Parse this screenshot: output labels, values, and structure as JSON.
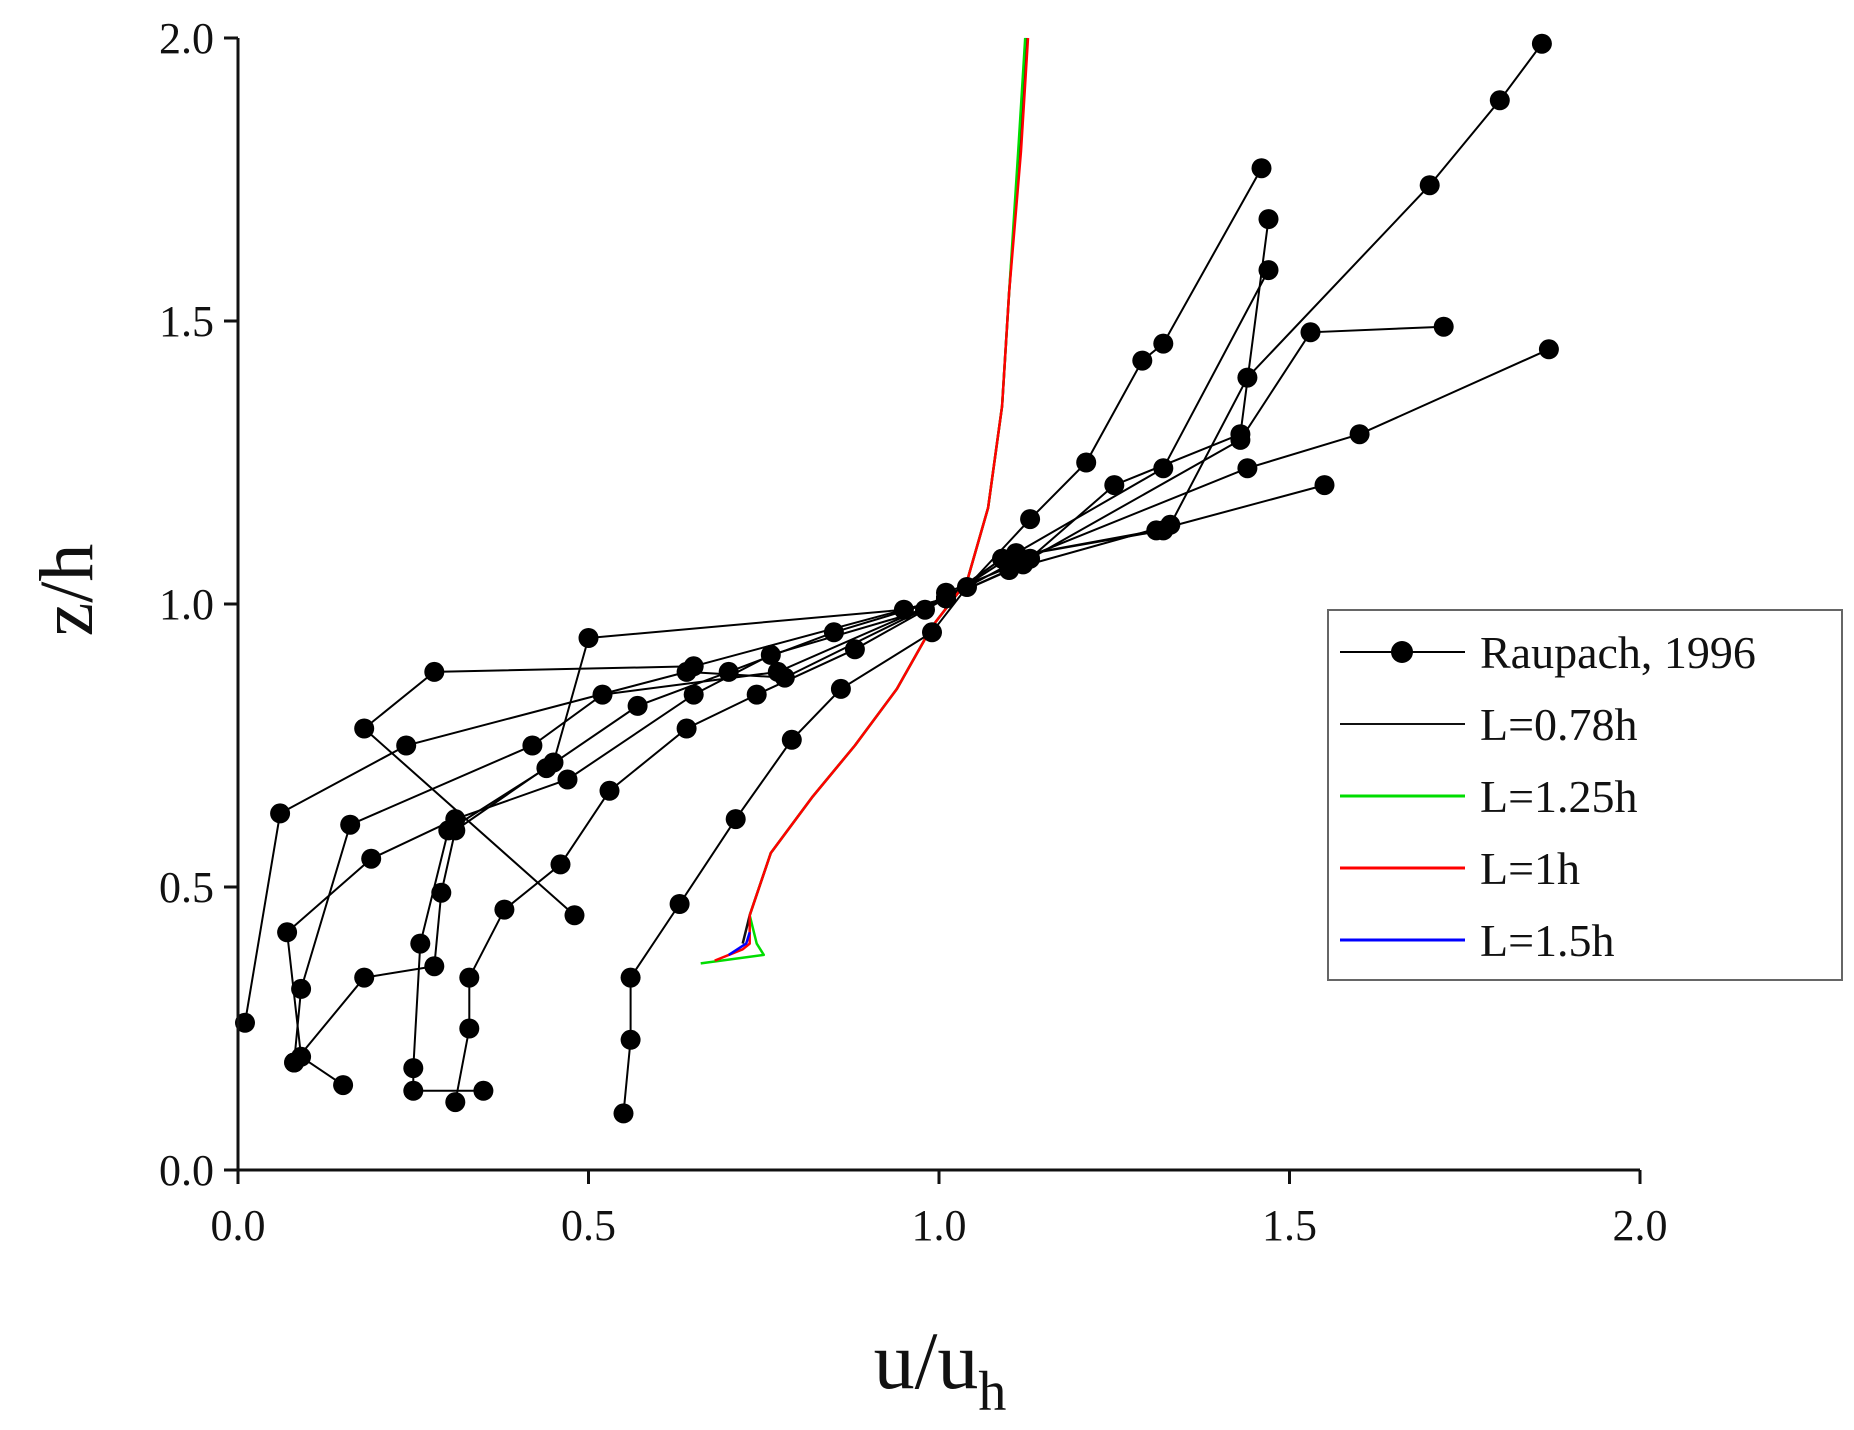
{
  "chart_data": {
    "type": "line",
    "title": "",
    "xlabel": "u/u",
    "xlabel_subscript": "h",
    "ylabel": "z/h",
    "xlim": [
      0,
      2
    ],
    "ylim": [
      0,
      2
    ],
    "xticks": [
      "0.0",
      "0.5",
      "1.0",
      "1.5",
      "2.0"
    ],
    "yticks": [
      "0.0",
      "0.5",
      "1.0",
      "1.5",
      "2.0"
    ],
    "legend_position": "right-middle",
    "series": [
      {
        "name": "Raupach, 1996",
        "color": "#000000",
        "marker": "circle",
        "profiles": [
          [
            [
              0.55,
              0.1
            ],
            [
              0.56,
              0.23
            ],
            [
              0.56,
              0.34
            ],
            [
              0.63,
              0.47
            ],
            [
              0.71,
              0.62
            ],
            [
              0.79,
              0.76
            ],
            [
              0.86,
              0.85
            ],
            [
              0.99,
              0.95
            ],
            [
              1.04,
              1.03
            ],
            [
              1.13,
              1.15
            ],
            [
              1.21,
              1.25
            ],
            [
              1.29,
              1.43
            ],
            [
              1.32,
              1.46
            ],
            [
              1.46,
              1.77
            ]
          ],
          [
            [
              0.31,
              0.12
            ],
            [
              0.33,
              0.25
            ],
            [
              0.33,
              0.34
            ],
            [
              0.38,
              0.46
            ],
            [
              0.46,
              0.54
            ],
            [
              0.53,
              0.67
            ],
            [
              0.64,
              0.78
            ],
            [
              0.74,
              0.84
            ],
            [
              0.88,
              0.92
            ],
            [
              1.01,
              1.01
            ],
            [
              1.12,
              1.07
            ],
            [
              1.25,
              1.21
            ],
            [
              1.43,
              1.3
            ],
            [
              1.47,
              1.68
            ]
          ],
          [
            [
              0.35,
              0.14
            ],
            [
              0.25,
              0.14
            ],
            [
              0.25,
              0.18
            ],
            [
              0.26,
              0.4
            ],
            [
              0.3,
              0.6
            ],
            [
              0.44,
              0.71
            ],
            [
              0.57,
              0.82
            ],
            [
              0.7,
              0.88
            ],
            [
              0.85,
              0.95
            ],
            [
              1.01,
              1.01
            ],
            [
              1.11,
              1.09
            ],
            [
              1.32,
              1.24
            ],
            [
              1.47,
              1.59
            ]
          ],
          [
            [
              0.48,
              0.45
            ],
            [
              0.18,
              0.78
            ],
            [
              0.28,
              0.88
            ],
            [
              0.65,
              0.89
            ],
            [
              1.01,
              1.01
            ],
            [
              1.09,
              1.08
            ],
            [
              1.31,
              1.13
            ],
            [
              1.55,
              1.21
            ]
          ],
          [
            [
              0.08,
              0.19
            ],
            [
              0.09,
              0.32
            ],
            [
              0.16,
              0.61
            ],
            [
              0.42,
              0.75
            ],
            [
              0.52,
              0.84
            ],
            [
              0.77,
              0.88
            ],
            [
              1.01,
              1.01
            ],
            [
              1.1,
              1.07
            ],
            [
              1.44,
              1.24
            ],
            [
              1.6,
              1.3
            ],
            [
              1.87,
              1.45
            ]
          ],
          [
            [
              0.01,
              0.26
            ],
            [
              0.06,
              0.63
            ],
            [
              0.24,
              0.75
            ],
            [
              0.64,
              0.88
            ],
            [
              0.78,
              0.87
            ],
            [
              1.01,
              1.01
            ],
            [
              1.1,
              1.06
            ],
            [
              1.33,
              1.14
            ],
            [
              1.44,
              1.4
            ],
            [
              1.7,
              1.74
            ],
            [
              1.8,
              1.89
            ],
            [
              1.86,
              1.99
            ]
          ],
          [
            [
              0.15,
              0.15
            ],
            [
              0.09,
              0.2
            ],
            [
              0.07,
              0.42
            ],
            [
              0.19,
              0.55
            ],
            [
              0.31,
              0.62
            ],
            [
              0.47,
              0.69
            ],
            [
              0.65,
              0.84
            ],
            [
              0.76,
              0.91
            ],
            [
              0.98,
              0.99
            ],
            [
              1.01,
              1.02
            ],
            [
              1.13,
              1.08
            ],
            [
              1.43,
              1.29
            ],
            [
              1.53,
              1.48
            ],
            [
              1.72,
              1.49
            ]
          ],
          [
            [
              0.08,
              0.19
            ],
            [
              0.18,
              0.34
            ],
            [
              0.28,
              0.36
            ],
            [
              0.29,
              0.49
            ],
            [
              0.31,
              0.6
            ],
            [
              0.45,
              0.72
            ],
            [
              0.5,
              0.94
            ],
            [
              0.95,
              0.99
            ],
            [
              1.01,
              1.01
            ],
            [
              1.09,
              1.08
            ],
            [
              1.32,
              1.13
            ]
          ]
        ]
      },
      {
        "name": "L=0.78h",
        "color": "#111111",
        "points": [
          [
            0.72,
            0.4
          ],
          [
            0.73,
            0.45
          ],
          [
            0.76,
            0.56
          ],
          [
            0.82,
            0.66
          ],
          [
            0.88,
            0.75
          ],
          [
            0.94,
            0.85
          ],
          [
            0.99,
            0.96
          ],
          [
            1.04,
            1.04
          ],
          [
            1.07,
            1.17
          ],
          [
            1.09,
            1.35
          ],
          [
            1.1,
            1.55
          ],
          [
            1.115,
            1.8
          ],
          [
            1.125,
            2.0
          ]
        ]
      },
      {
        "name": "L=1.25h",
        "color": "#00dd00",
        "points": [
          [
            0.66,
            0.365
          ],
          [
            0.75,
            0.38
          ],
          [
            0.74,
            0.4
          ],
          [
            0.73,
            0.45
          ],
          [
            0.76,
            0.56
          ],
          [
            0.82,
            0.66
          ],
          [
            0.88,
            0.75
          ],
          [
            0.94,
            0.85
          ],
          [
            0.99,
            0.96
          ],
          [
            1.04,
            1.04
          ],
          [
            1.07,
            1.17
          ],
          [
            1.09,
            1.35
          ],
          [
            1.1,
            1.55
          ],
          [
            1.113,
            1.8
          ],
          [
            1.123,
            2.0
          ]
        ]
      },
      {
        "name": "L=1h",
        "color": "#ff0000",
        "points": [
          [
            0.68,
            0.37
          ],
          [
            0.72,
            0.39
          ],
          [
            0.73,
            0.4
          ],
          [
            0.73,
            0.45
          ],
          [
            0.76,
            0.56
          ],
          [
            0.82,
            0.66
          ],
          [
            0.88,
            0.75
          ],
          [
            0.94,
            0.85
          ],
          [
            0.99,
            0.96
          ],
          [
            1.04,
            1.04
          ],
          [
            1.07,
            1.17
          ],
          [
            1.09,
            1.35
          ],
          [
            1.1,
            1.55
          ],
          [
            1.117,
            1.8
          ],
          [
            1.127,
            2.0
          ]
        ]
      },
      {
        "name": "L=1.5h",
        "color": "#0000ff",
        "points": [
          [
            0.7,
            0.38
          ],
          [
            0.725,
            0.4
          ],
          [
            0.73,
            0.42
          ]
        ]
      }
    ]
  }
}
